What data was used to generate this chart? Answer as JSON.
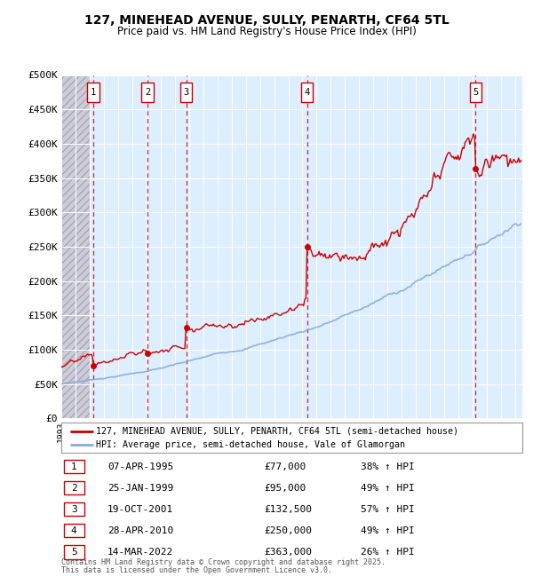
{
  "title": "127, MINEHEAD AVENUE, SULLY, PENARTH, CF64 5TL",
  "subtitle": "Price paid vs. HM Land Registry's House Price Index (HPI)",
  "ylim": [
    0,
    500000
  ],
  "yticks": [
    0,
    50000,
    100000,
    150000,
    200000,
    250000,
    300000,
    350000,
    400000,
    450000,
    500000
  ],
  "ytick_labels": [
    "£0",
    "£50K",
    "£100K",
    "£150K",
    "£200K",
    "£250K",
    "£300K",
    "£350K",
    "£400K",
    "£450K",
    "£500K"
  ],
  "xlim_start": 1993.0,
  "xlim_end": 2025.5,
  "sale_dates": [
    1995.27,
    1999.07,
    2001.8,
    2010.32,
    2022.2
  ],
  "sale_prices": [
    77000,
    95000,
    132500,
    250000,
    363000
  ],
  "sale_labels": [
    "1",
    "2",
    "3",
    "4",
    "5"
  ],
  "sale_date_labels": [
    "07-APR-1995",
    "25-JAN-1999",
    "19-OCT-2001",
    "28-APR-2010",
    "14-MAR-2022"
  ],
  "sale_price_labels": [
    "£77,000",
    "£95,000",
    "£132,500",
    "£250,000",
    "£363,000"
  ],
  "sale_hpi_labels": [
    "38% ↑ HPI",
    "49% ↑ HPI",
    "57% ↑ HPI",
    "49% ↑ HPI",
    "26% ↑ HPI"
  ],
  "legend_line1": "127, MINEHEAD AVENUE, SULLY, PENARTH, CF64 5TL (semi-detached house)",
  "legend_line2": "HPI: Average price, semi-detached house, Vale of Glamorgan",
  "footer1": "Contains HM Land Registry data © Crown copyright and database right 2025.",
  "footer2": "This data is licensed under the Open Government Licence v3.0.",
  "property_line_color": "#cc0000",
  "hpi_line_color": "#88aadd",
  "bg_color": "#ddeeff",
  "grid_color": "#ffffff",
  "vline_color": "#cc0000",
  "box_edge_color": "#cc0000",
  "hatch_bg_color": "#ccccdd"
}
